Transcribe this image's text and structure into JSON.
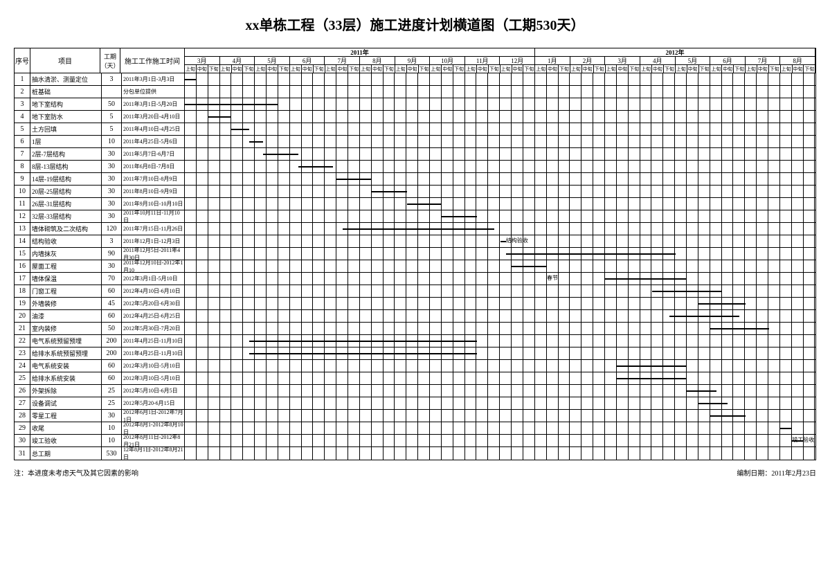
{
  "title": "xx单栋工程（33层）施工进度计划横道图（工期530天）",
  "headers": {
    "seq": "序号",
    "name": "项目",
    "days": "工期（天）",
    "time": "施工工作施工时间"
  },
  "years": [
    {
      "label": "2011年",
      "months": 10
    },
    {
      "label": "2012年",
      "months": 8
    }
  ],
  "months": [
    "3月",
    "4月",
    "5月",
    "6月",
    "7月",
    "8月",
    "9月",
    "10月",
    "11月",
    "12月",
    "1月",
    "2月",
    "3月",
    "4月",
    "5月",
    "6月",
    "7月",
    "8月"
  ],
  "subcols": [
    "上旬",
    "中旬",
    "下旬"
  ],
  "total_subcols": 54,
  "bar_color": "#000000",
  "grid_color": "#000000",
  "footer_left": "注：本进度未考虑天气及其它因素的影响",
  "footer_right": "编制日期：2011年2月23日",
  "tasks": [
    {
      "seq": 1,
      "name": "抽水清淤、测量定位",
      "days": "3",
      "time": "2011年3月1日-3月3日",
      "start": 0,
      "dur": 1
    },
    {
      "seq": 2,
      "name": "桩基础",
      "days": "",
      "time": "分包单位提供",
      "start": null,
      "dur": null
    },
    {
      "seq": 3,
      "name": "地下室结构",
      "days": "50",
      "time": "2011年3月1日-5月20日",
      "start": 0,
      "dur": 8
    },
    {
      "seq": 4,
      "name": "地下室防水",
      "days": "5",
      "time": "2011年3月20日-4月10日",
      "start": 2,
      "dur": 2
    },
    {
      "seq": 5,
      "name": "土方回填",
      "days": "5",
      "time": "2011年4月10日-4月25日",
      "start": 4,
      "dur": 1.5
    },
    {
      "seq": 6,
      "name": "1层",
      "days": "10",
      "time": "2011年4月25日-5月6日",
      "start": 5.5,
      "dur": 1.2
    },
    {
      "seq": 7,
      "name": "2层-7层结构",
      "days": "30",
      "time": "2011年5月7日-6月7日",
      "start": 6.7,
      "dur": 3
    },
    {
      "seq": 8,
      "name": "8层-13层结构",
      "days": "30",
      "time": "2011年6月8日-7月8日",
      "start": 9.7,
      "dur": 3
    },
    {
      "seq": 9,
      "name": "14层-19层结构",
      "days": "30",
      "time": "2011年7月10日-8月9日",
      "start": 13,
      "dur": 3
    },
    {
      "seq": 10,
      "name": "20层-25层结构",
      "days": "30",
      "time": "2011年8月10日-9月9日",
      "start": 16,
      "dur": 3
    },
    {
      "seq": 11,
      "name": "26层-31层结构",
      "days": "30",
      "time": "2011年9月10日-10月10日",
      "start": 19,
      "dur": 3
    },
    {
      "seq": 12,
      "name": "32层-33层结构",
      "days": "30",
      "time": "2011年10月11日-11月10日",
      "start": 22,
      "dur": 3
    },
    {
      "seq": 13,
      "name": "墙体砌筑及二次结构",
      "days": "120",
      "time": "2011年7月15日-11月26日",
      "start": 13.5,
      "dur": 13
    },
    {
      "seq": 14,
      "name": "结构验收",
      "days": "3",
      "time": "2011年12月1日-12月3日",
      "start": 27,
      "dur": 0.5,
      "label": "结构验收",
      "label_offset": 27.5
    },
    {
      "seq": 15,
      "name": "内墙抹灰",
      "days": "90",
      "time": "2011年12月5日-2011年4月30日",
      "start": 27.5,
      "dur": 14.5
    },
    {
      "seq": 16,
      "name": "屋面工程",
      "days": "30",
      "time": "2011年12月10日-2012年1月10",
      "start": 28,
      "dur": 3
    },
    {
      "seq": 17,
      "name": "墙体保温",
      "days": "70",
      "time": "2012年3月1日-5月10日",
      "start": 36,
      "dur": 7,
      "label": "春节",
      "label_offset": 31
    },
    {
      "seq": 18,
      "name": "门窗工程",
      "days": "60",
      "time": "2012年4月10日-6月10日",
      "start": 40,
      "dur": 6
    },
    {
      "seq": 19,
      "name": "外墙装修",
      "days": "45",
      "time": "2012年5月20日-6月30日",
      "start": 44,
      "dur": 4
    },
    {
      "seq": 20,
      "name": "油漆",
      "days": "60",
      "time": "2012年4月25日-6月25日",
      "start": 41.5,
      "dur": 6
    },
    {
      "seq": 21,
      "name": "室内装修",
      "days": "50",
      "time": "2012年5月30日-7月20日",
      "start": 45,
      "dur": 5
    },
    {
      "seq": 22,
      "name": "电气系统预留预埋",
      "days": "200",
      "time": "2011年4月25日-11月10日",
      "start": 5.5,
      "dur": 19.5
    },
    {
      "seq": 23,
      "name": "给排水系统预留预埋",
      "days": "200",
      "time": "2011年4月25日-11月10日",
      "start": 5.5,
      "dur": 19.5
    },
    {
      "seq": 24,
      "name": "电气系统安装",
      "days": "60",
      "time": "2012年3月10日-5月10日",
      "start": 37,
      "dur": 6
    },
    {
      "seq": 25,
      "name": "给排水系统安装",
      "days": "60",
      "time": "2012年3月10日-5月10日",
      "start": 37,
      "dur": 6
    },
    {
      "seq": 26,
      "name": "外架拆除",
      "days": "25",
      "time": "2012年5月10日-6月5日",
      "start": 43,
      "dur": 2.5
    },
    {
      "seq": 27,
      "name": "设备调试",
      "days": "25",
      "time": "2012年5月20-6月15日",
      "start": 44,
      "dur": 2.5
    },
    {
      "seq": 28,
      "name": "零星工程",
      "days": "30",
      "time": "2012年6月1日-2012年7月1日",
      "start": 45,
      "dur": 3
    },
    {
      "seq": 29,
      "name": "收尾",
      "days": "10",
      "time": "2012年8月1-2012年8月10日",
      "start": 51,
      "dur": 1
    },
    {
      "seq": 30,
      "name": "竣工验收",
      "days": "10",
      "time": "2012年8月11日-2012年8月21日",
      "start": 52,
      "dur": 1,
      "label": "竣工验收",
      "label_offset": 52
    },
    {
      "seq": 31,
      "name": "总工期",
      "days": "530",
      "time": "12年8月1日-2012年8月21日",
      "start": null,
      "dur": null
    }
  ]
}
